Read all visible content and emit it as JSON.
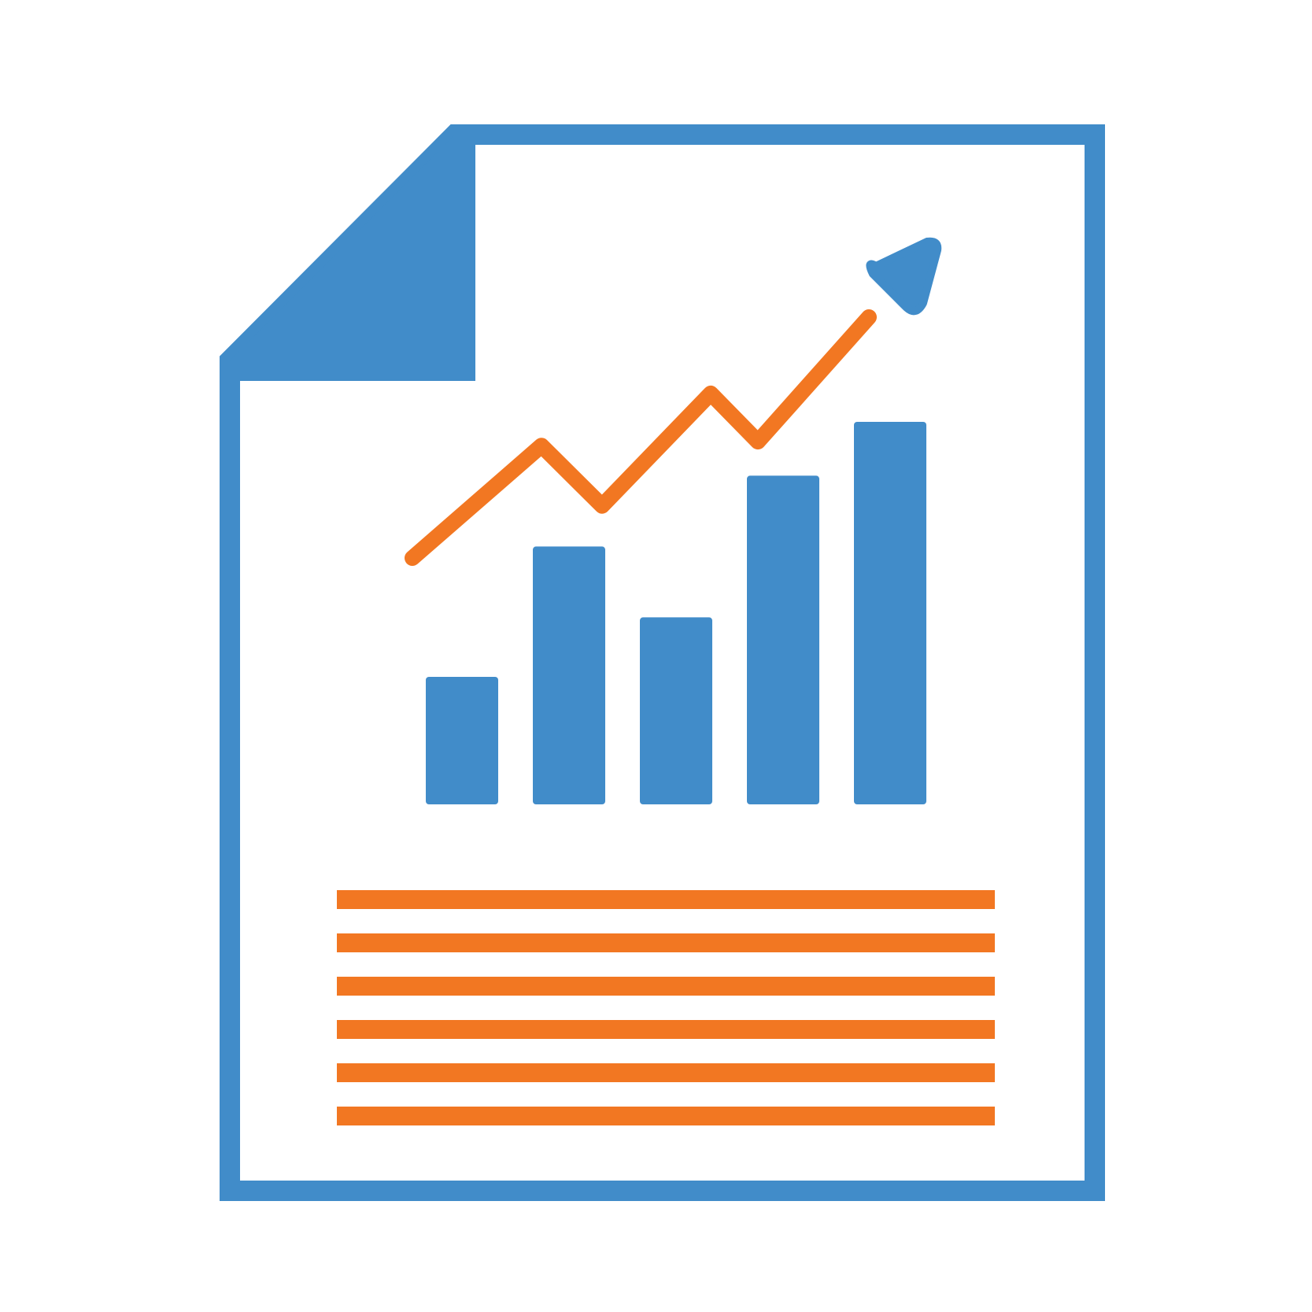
{
  "icon": {
    "name": "report-document-icon",
    "colors": {
      "background": "#ffffff",
      "document": "#418cc9",
      "trend": "#f27722",
      "bars": "#418cc9",
      "text_lines": "#f27722"
    },
    "bars": [
      0.45,
      0.91,
      0.66,
      1.16,
      1.35
    ],
    "trend_points": [
      0.0,
      0.56,
      0.26,
      0.82,
      0.58,
      1.2
    ],
    "text_line_count": 6
  }
}
